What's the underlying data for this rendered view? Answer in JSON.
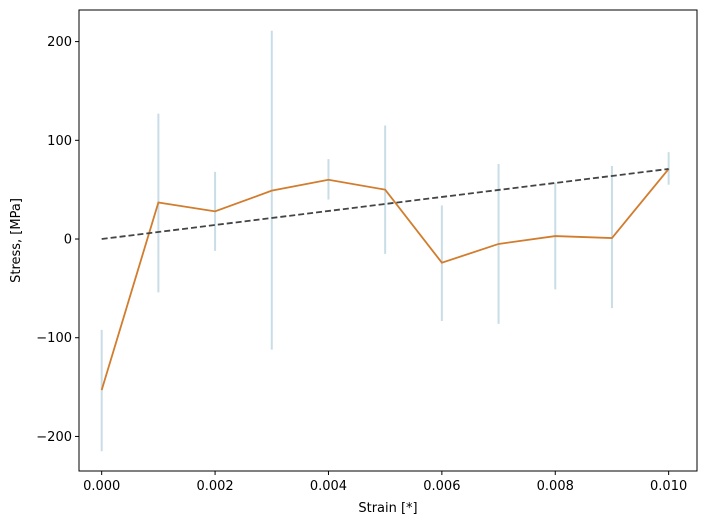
{
  "chart_data": {
    "type": "line",
    "xlabel": "Strain [*]",
    "ylabel": "Stress, [MPa]",
    "xlim": [
      -0.0004,
      0.0105
    ],
    "ylim": [
      -235,
      232
    ],
    "x_ticks": [
      0.0,
      0.002,
      0.004,
      0.006,
      0.008,
      0.01
    ],
    "x_tick_labels": [
      "0.000",
      "0.002",
      "0.004",
      "0.006",
      "0.008",
      "0.010"
    ],
    "y_ticks": [
      -200,
      -100,
      0,
      100,
      200
    ],
    "y_tick_labels": [
      "−200",
      "−100",
      "0",
      "100",
      "200"
    ],
    "grid": false,
    "legend": "none",
    "series": [
      {
        "style": "solid",
        "color": "#d27c2d",
        "x": [
          0.0,
          0.001,
          0.002,
          0.003,
          0.004,
          0.005,
          0.006,
          0.007,
          0.008,
          0.009,
          0.01
        ],
        "y": [
          -153,
          37,
          28,
          49,
          60,
          50,
          -24,
          -5,
          3,
          1,
          71
        ]
      },
      {
        "style": "dashed",
        "color": "#444444",
        "x": [
          0.0,
          0.01
        ],
        "y": [
          0,
          71
        ]
      }
    ],
    "error_bars": {
      "color": "#c9dde6",
      "x": [
        0.0,
        0.001,
        0.002,
        0.003,
        0.004,
        0.005,
        0.006,
        0.007,
        0.008,
        0.009,
        0.01
      ],
      "low": [
        -215,
        -54,
        -12,
        -112,
        40,
        -15,
        -83,
        -86,
        -51,
        -70,
        55
      ],
      "high": [
        -92,
        127,
        68,
        211,
        81,
        115,
        34,
        76,
        57,
        74,
        88
      ]
    }
  }
}
